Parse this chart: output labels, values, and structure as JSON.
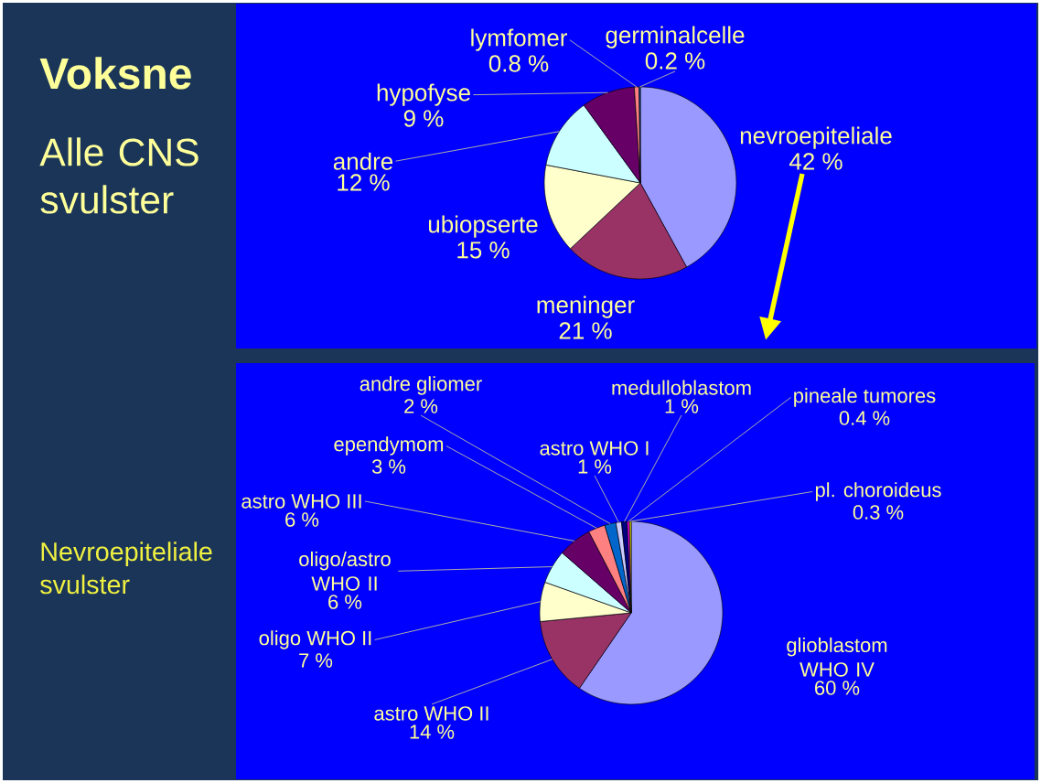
{
  "chart_data": [
    {
      "type": "pie",
      "title": "Voksne",
      "subtitle": "Alle CNS svulster",
      "categories": [
        "nevroepiteliale",
        "meninger",
        "ubiopserte",
        "andre",
        "hypofyse",
        "lymfomer",
        "germinalcelle"
      ],
      "values": [
        42,
        21,
        15,
        12,
        9,
        0.8,
        0.2
      ],
      "colors": [
        "#9999ff",
        "#993366",
        "#ffffcc",
        "#ccffff",
        "#660066",
        "#ff8080",
        "#0066cc"
      ],
      "value_labels": [
        "42 %",
        "21 %",
        "15 %",
        "12 %",
        "9 %",
        "0.8 %",
        "0.2 %"
      ]
    },
    {
      "type": "pie",
      "title": "Nevroepiteliale svulster",
      "categories": [
        "glioblastom WHO IV",
        "astro WHO II",
        "oligo WHO II",
        "oligo/astro WHO II",
        "astro WHO III",
        "ependymom",
        "andre gliomer",
        "astro WHO I",
        "medulloblastom",
        "pineale tumores",
        "pl. choroideus"
      ],
      "values": [
        60,
        14,
        7,
        6,
        6,
        3,
        2,
        1,
        1,
        0.4,
        0.3
      ],
      "colors": [
        "#9999ff",
        "#993366",
        "#ffffcc",
        "#ccffff",
        "#660066",
        "#ff8080",
        "#0066cc",
        "#ccccff",
        "#000080",
        "#ff00ff",
        "#ffff00"
      ],
      "value_labels": [
        "60 %",
        "14 %",
        "7 %",
        "6 %",
        "6 %",
        "3 %",
        "2 %",
        "1 %",
        "1 %",
        "0.4 %",
        "0.3 %"
      ]
    }
  ]
}
